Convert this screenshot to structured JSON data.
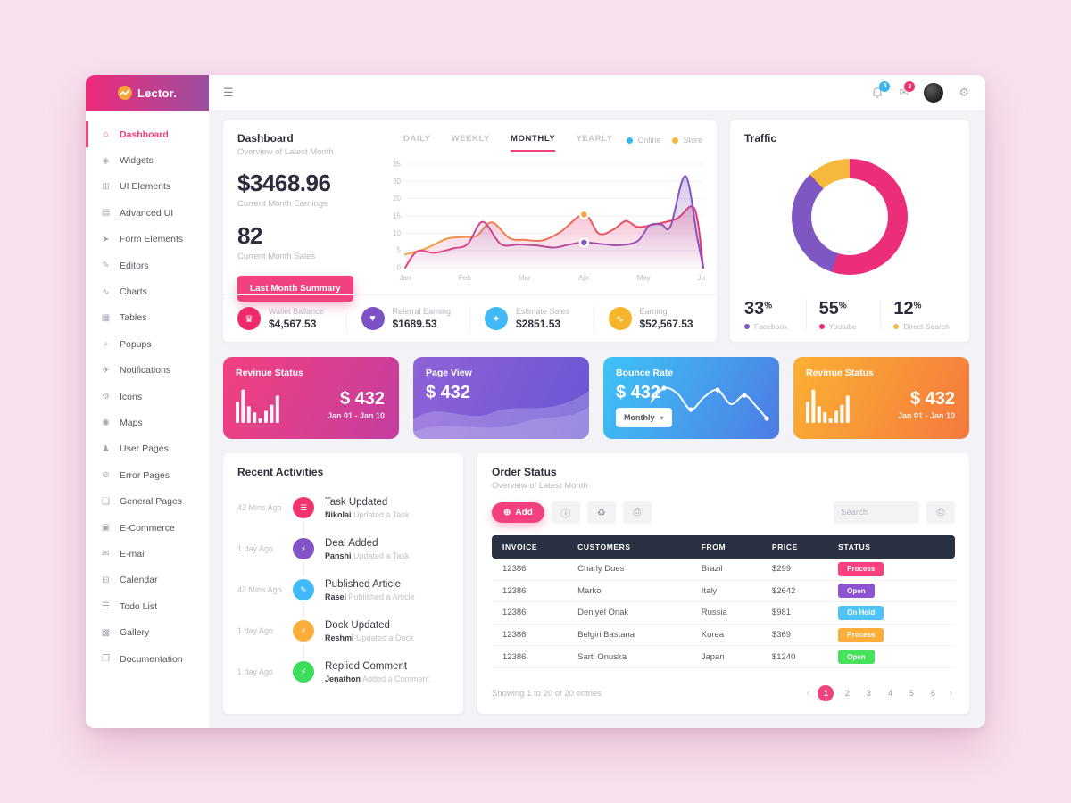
{
  "brand": {
    "name": "Lector.",
    "logo_icon": "wave-logo"
  },
  "topbar": {
    "menu_icon": "☰",
    "mail_icon": "✉",
    "gear_icon": "⚙",
    "notif_count": "3",
    "msg_count": "3"
  },
  "sidebar": {
    "items": [
      {
        "icon": "home-icon",
        "glyph": "⌂",
        "label": "Dashboard"
      },
      {
        "icon": "widgets-icon",
        "glyph": "◈",
        "label": "Widgets"
      },
      {
        "icon": "sliders-icon",
        "glyph": "⊞",
        "label": "UI Elements"
      },
      {
        "icon": "layers-icon",
        "glyph": "▤",
        "label": "Advanced UI"
      },
      {
        "icon": "paper-plane-icon",
        "glyph": "➤",
        "label": "Form Elements"
      },
      {
        "icon": "pencil-icon",
        "glyph": "✎",
        "label": "Editors"
      },
      {
        "icon": "line-chart-icon",
        "glyph": "∿",
        "label": "Charts"
      },
      {
        "icon": "table-icon",
        "glyph": "▦",
        "label": "Tables"
      },
      {
        "icon": "magnifier-icon",
        "glyph": "⌕",
        "label": "Popups"
      },
      {
        "icon": "send-icon",
        "glyph": "✈",
        "label": "Notifications"
      },
      {
        "icon": "gear-icon",
        "glyph": "⚙",
        "label": "Icons"
      },
      {
        "icon": "pin-icon",
        "glyph": "◉",
        "label": "Maps"
      },
      {
        "icon": "user-icon",
        "glyph": "♟",
        "label": "User Pages"
      },
      {
        "icon": "error-icon",
        "glyph": "⊘",
        "label": "Error Pages"
      },
      {
        "icon": "pages-icon",
        "glyph": "❏",
        "label": "General Pages"
      },
      {
        "icon": "cart-icon",
        "glyph": "▣",
        "label": "E-Commerce"
      },
      {
        "icon": "mail-icon",
        "glyph": "✉",
        "label": "E-mail"
      },
      {
        "icon": "calendar-icon",
        "glyph": "⊟",
        "label": "Calendar"
      },
      {
        "icon": "todo-icon",
        "glyph": "☰",
        "label": "Todo List"
      },
      {
        "icon": "gallery-icon",
        "glyph": "▩",
        "label": "Gallery"
      },
      {
        "icon": "document-icon",
        "glyph": "❐",
        "label": "Documentation"
      }
    ]
  },
  "overview": {
    "title": "Dashboard",
    "subtitle": "Overview of Latest Month",
    "tabs": [
      {
        "label": "DAILY"
      },
      {
        "label": "WEEKLY"
      },
      {
        "label": "MONTHLY"
      },
      {
        "label": "YEARLY"
      }
    ],
    "active_tab": "MONTHLY",
    "legend": [
      {
        "label": "Online",
        "color": "#35b8f3"
      },
      {
        "label": "Store",
        "color": "#f6b93d"
      }
    ],
    "earning_value": "$3468.96",
    "earning_label": "Current Month Earnings",
    "sales_value": "82",
    "sales_label": "Current Month Sales",
    "summary_button": "Last Month Summary",
    "stats": [
      {
        "icon": "crown-icon",
        "glyph": "♛",
        "color": "#ee2a6d",
        "label": "Wallet Ballance",
        "value": "$4,567.53"
      },
      {
        "icon": "heart-icon",
        "glyph": "♥",
        "color": "#7c51c5",
        "label": "Referral Earning",
        "value": "$1689.53"
      },
      {
        "icon": "magic-wand-icon",
        "glyph": "✦",
        "color": "#41b9f6",
        "label": "Estimate Sales",
        "value": "$2851.53"
      },
      {
        "icon": "trend-icon",
        "glyph": "∿",
        "color": "#f5b52d",
        "label": "Earning",
        "value": "$52,567.53"
      }
    ]
  },
  "traffic": {
    "title": "Traffic",
    "stats": [
      {
        "value": "33",
        "unit": "%",
        "label": "Facebook",
        "color": "#7e57c2"
      },
      {
        "value": "55",
        "unit": "%",
        "label": "Youtube",
        "color": "#ec2e7a"
      },
      {
        "value": "12",
        "unit": "%",
        "label": "Direct Search",
        "color": "#f6b93d"
      }
    ]
  },
  "promo_cards": [
    {
      "title": "Revinue Status",
      "value": "$ 432",
      "range": "Jan 01 - Jan 10"
    },
    {
      "title": "Page View",
      "value": "$ 432"
    },
    {
      "title": "Bounce Rate",
      "value": "$ 432",
      "select": "Monthly",
      "select_chevron": "▾"
    },
    {
      "title": "Revinue Status",
      "value": "$ 432",
      "range": "Jan 01 - Jan 10"
    }
  ],
  "activities": {
    "title": "Recent Activities",
    "items": [
      {
        "time": "42 Mins Ago",
        "icon": "list-icon",
        "glyph": "☰",
        "color": "#f2346e",
        "title": "Task Updated",
        "actor": "Nikolai",
        "action": " Updated a Task"
      },
      {
        "time": "1 day Ago",
        "icon": "bolt-icon",
        "glyph": "⚡",
        "color": "#8153c7",
        "title": "Deal Added",
        "actor": "Panshi",
        "action": " Updated a Task"
      },
      {
        "time": "42 Mins Ago",
        "icon": "pencil-icon",
        "glyph": "✎",
        "color": "#41b9f6",
        "title": "Published Article",
        "actor": "Rasel",
        "action": " Published a Article"
      },
      {
        "time": "1 day Ago",
        "icon": "bolt-icon",
        "glyph": "⚡",
        "color": "#fbae3c",
        "title": "Dock Updated",
        "actor": "Reshmi",
        "action": " Updated a Dock"
      },
      {
        "time": "1 day Ago",
        "icon": "bolt-icon",
        "glyph": "⚡",
        "color": "#3ddc5a",
        "title": "Replied Comment",
        "actor": "Jenathon",
        "action": " Added a Comment"
      }
    ]
  },
  "orders": {
    "title": "Order Status",
    "subtitle": "Overview of Latest Month",
    "add_label": "Add",
    "add_icon": "⊕",
    "tools": [
      {
        "name": "info-icon",
        "glyph": "ⓘ"
      },
      {
        "name": "trash-icon",
        "glyph": "♻"
      },
      {
        "name": "printer-icon",
        "glyph": "⎙"
      }
    ],
    "search_placeholder": "Search",
    "print_icon": "⎙",
    "columns": [
      "INVOICE",
      "CUSTOMERS",
      "FROM",
      "PRICE",
      "STATUS"
    ],
    "rows": [
      {
        "invoice": "12386",
        "customer": "Charly Dues",
        "from": "Brazil",
        "price": "$299",
        "status": "Process",
        "status_color": "#f8417e"
      },
      {
        "invoice": "12386",
        "customer": "Marko",
        "from": "Italy",
        "price": "$2642",
        "status": "Open",
        "status_color": "#8c54d0"
      },
      {
        "invoice": "12386",
        "customer": "Deniyel Onak",
        "from": "Russia",
        "price": "$981",
        "status": "On Hold",
        "status_color": "#4fc3f7"
      },
      {
        "invoice": "12386",
        "customer": "Belgiri Bastana",
        "from": "Korea",
        "price": "$369",
        "status": "Process",
        "status_color": "#fbae3c"
      },
      {
        "invoice": "12386",
        "customer": "Sarti Onuska",
        "from": "Japan",
        "price": "$1240",
        "status": "Open",
        "status_color": "#47e25b"
      }
    ],
    "footer": "Showing 1 to 20 of 20 entries",
    "prev_icon": "‹",
    "next_icon": "›",
    "pages": [
      "1",
      "2",
      "3",
      "4",
      "5",
      "6"
    ],
    "active_page": "1"
  },
  "chart_data": [
    {
      "type": "line",
      "title": "Dashboard — Overview of Latest Month (Online vs Store)",
      "x_labels": [
        "Jan",
        "Feb",
        "Mar",
        "Apr",
        "May",
        "Jun"
      ],
      "y_tick_labels": [
        "35",
        "30",
        "20",
        "15",
        "10",
        "5",
        "0"
      ],
      "ylim": [
        0,
        35
      ],
      "grid": true,
      "series": [
        {
          "name": "Store",
          "color_start": "#f6a43b",
          "color_end": "#e8336e",
          "points": [
            [
              0,
              4.5
            ],
            [
              0.35,
              6.5
            ],
            [
              0.7,
              9.8
            ],
            [
              1,
              10.4
            ],
            [
              1.2,
              10.8
            ],
            [
              1.45,
              15.3
            ],
            [
              1.75,
              10
            ],
            [
              2,
              9.4
            ],
            [
              2.3,
              9.2
            ],
            [
              2.6,
              12
            ],
            [
              3,
              18
            ],
            [
              3.25,
              11.5
            ],
            [
              3.5,
              13
            ],
            [
              3.7,
              15.8
            ],
            [
              3.9,
              13.8
            ],
            [
              4.15,
              14.5
            ],
            [
              4.55,
              16.5
            ],
            [
              4.85,
              20
            ],
            [
              5,
              0
            ]
          ]
        },
        {
          "name": "Online",
          "color_start": "#ec407a",
          "color_end": "#7e57c2",
          "points": [
            [
              0,
              0
            ],
            [
              0.2,
              5.5
            ],
            [
              0.5,
              5
            ],
            [
              0.8,
              6.5
            ],
            [
              1.05,
              8
            ],
            [
              1.3,
              15.5
            ],
            [
              1.6,
              8
            ],
            [
              1.9,
              7.8
            ],
            [
              2.2,
              7.5
            ],
            [
              2.5,
              6.8
            ],
            [
              2.75,
              7.8
            ],
            [
              3,
              8.5
            ],
            [
              3.3,
              8
            ],
            [
              3.6,
              7.6
            ],
            [
              3.9,
              9
            ],
            [
              4.1,
              14.3
            ],
            [
              4.3,
              14.6
            ],
            [
              4.45,
              14
            ],
            [
              4.7,
              31
            ],
            [
              4.9,
              10
            ],
            [
              5,
              0
            ]
          ]
        }
      ],
      "markers": [
        {
          "x": 3,
          "y": 18,
          "color": "#f6a43b"
        },
        {
          "x": 3,
          "y": 8.5,
          "color": "#7e57c2"
        }
      ]
    },
    {
      "type": "pie",
      "title": "Traffic",
      "labels": [
        "Youtube",
        "Facebook",
        "Direct Search"
      ],
      "values": [
        55,
        33,
        12
      ],
      "colors": [
        "#ec2e7a",
        "#7e57c2",
        "#f6b93d"
      ]
    },
    {
      "type": "line",
      "title": "Bounce Rate sparkline",
      "points": [
        [
          0,
          22
        ],
        [
          15,
          6
        ],
        [
          30,
          12
        ],
        [
          45,
          30
        ],
        [
          60,
          16
        ],
        [
          75,
          8
        ],
        [
          90,
          24
        ],
        [
          105,
          14
        ],
        [
          118,
          26
        ],
        [
          130,
          40
        ]
      ],
      "dot_indices": [
        1,
        3,
        5,
        7,
        9
      ]
    },
    {
      "type": "bar",
      "title": "Revinue Status bars icon",
      "values": [
        14,
        22,
        11,
        7,
        3,
        8,
        12,
        18
      ]
    }
  ]
}
